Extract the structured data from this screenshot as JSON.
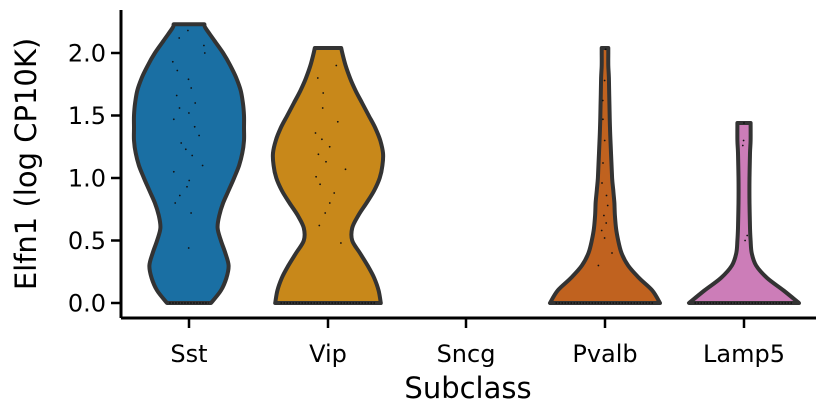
{
  "chart_data": {
    "type": "violin",
    "xlabel": "Subclass",
    "ylabel": "Elfn1 (log CP10K)",
    "categories": [
      "Sst",
      "Vip",
      "Sncg",
      "Pvalb",
      "Lamp5"
    ],
    "yticks": [
      0.0,
      0.5,
      1.0,
      1.5,
      2.0
    ],
    "ytick_labels": [
      "0.0",
      "0.5",
      "1.0",
      "1.5",
      "2.0"
    ],
    "ylim": [
      -0.12,
      2.35
    ],
    "grid": false,
    "legend": "none",
    "series": [
      {
        "category": "Sst",
        "color": "#1a6fa3",
        "min": 0.0,
        "max": 2.23,
        "density_profile": [
          [
            0.0,
            0.4
          ],
          [
            0.1,
            0.58
          ],
          [
            0.2,
            0.68
          ],
          [
            0.3,
            0.72
          ],
          [
            0.4,
            0.66
          ],
          [
            0.5,
            0.58
          ],
          [
            0.6,
            0.52
          ],
          [
            0.7,
            0.55
          ],
          [
            0.8,
            0.62
          ],
          [
            0.9,
            0.72
          ],
          [
            1.0,
            0.82
          ],
          [
            1.1,
            0.91
          ],
          [
            1.2,
            0.97
          ],
          [
            1.3,
            1.0
          ],
          [
            1.4,
            1.0
          ],
          [
            1.5,
            1.0
          ],
          [
            1.6,
            0.98
          ],
          [
            1.7,
            0.94
          ],
          [
            1.8,
            0.86
          ],
          [
            1.9,
            0.75
          ],
          [
            2.0,
            0.62
          ],
          [
            2.1,
            0.46
          ],
          [
            2.2,
            0.3
          ],
          [
            2.23,
            0.28
          ]
        ],
        "points": [
          0.44,
          0.72,
          0.8,
          0.86,
          0.93,
          0.98,
          1.05,
          1.1,
          1.18,
          1.23,
          1.28,
          1.34,
          1.41,
          1.47,
          1.52,
          1.56,
          1.6,
          1.66,
          1.72,
          1.79,
          1.86,
          1.93,
          2.0,
          2.06,
          2.12,
          2.18
        ]
      },
      {
        "category": "Vip",
        "color": "#c8881a",
        "min": 0.0,
        "max": 2.04,
        "density_profile": [
          [
            0.0,
            0.96
          ],
          [
            0.1,
            0.92
          ],
          [
            0.2,
            0.84
          ],
          [
            0.3,
            0.72
          ],
          [
            0.4,
            0.58
          ],
          [
            0.5,
            0.44
          ],
          [
            0.6,
            0.44
          ],
          [
            0.7,
            0.55
          ],
          [
            0.8,
            0.7
          ],
          [
            0.9,
            0.84
          ],
          [
            1.0,
            0.94
          ],
          [
            1.1,
            0.99
          ],
          [
            1.2,
            1.0
          ],
          [
            1.3,
            0.95
          ],
          [
            1.4,
            0.86
          ],
          [
            1.5,
            0.74
          ],
          [
            1.6,
            0.62
          ],
          [
            1.7,
            0.5
          ],
          [
            1.8,
            0.4
          ],
          [
            1.9,
            0.32
          ],
          [
            2.0,
            0.26
          ],
          [
            2.04,
            0.24
          ]
        ],
        "points": [
          0.48,
          0.62,
          0.72,
          0.8,
          0.88,
          0.95,
          1.01,
          1.07,
          1.13,
          1.19,
          1.25,
          1.31,
          1.36,
          1.45,
          1.56,
          1.68,
          1.8,
          1.9
        ]
      },
      {
        "category": "Sncg",
        "color": "#1a9e76",
        "min": 0.0,
        "max": 0.0,
        "density_profile": [],
        "points": []
      },
      {
        "category": "Pvalb",
        "color": "#c0621f",
        "min": 0.0,
        "max": 2.04,
        "density_profile": [
          [
            0.0,
            1.0
          ],
          [
            0.1,
            0.86
          ],
          [
            0.2,
            0.62
          ],
          [
            0.3,
            0.42
          ],
          [
            0.4,
            0.3
          ],
          [
            0.5,
            0.24
          ],
          [
            0.6,
            0.2
          ],
          [
            0.7,
            0.18
          ],
          [
            0.8,
            0.17
          ],
          [
            0.9,
            0.15
          ],
          [
            1.0,
            0.13
          ],
          [
            1.2,
            0.11
          ],
          [
            1.4,
            0.09
          ],
          [
            1.6,
            0.08
          ],
          [
            1.8,
            0.07
          ],
          [
            1.9,
            0.06
          ],
          [
            2.0,
            0.06
          ],
          [
            2.04,
            0.06
          ]
        ],
        "points": [
          0.3,
          0.4,
          0.52,
          0.58,
          0.64,
          0.7,
          0.78,
          0.86,
          0.96,
          1.12,
          1.3,
          1.47,
          1.62,
          1.78,
          2.03
        ]
      },
      {
        "category": "Lamp5",
        "color": "#cc7db8",
        "min": 0.0,
        "max": 1.44,
        "density_profile": [
          [
            0.0,
            1.0
          ],
          [
            0.1,
            0.72
          ],
          [
            0.2,
            0.42
          ],
          [
            0.3,
            0.22
          ],
          [
            0.4,
            0.14
          ],
          [
            0.5,
            0.12
          ],
          [
            0.6,
            0.11
          ],
          [
            0.8,
            0.1
          ],
          [
            1.0,
            0.1
          ],
          [
            1.2,
            0.11
          ],
          [
            1.3,
            0.12
          ],
          [
            1.44,
            0.12
          ]
        ],
        "points": [
          0.5,
          0.54,
          1.26,
          1.3,
          1.44
        ]
      }
    ]
  }
}
